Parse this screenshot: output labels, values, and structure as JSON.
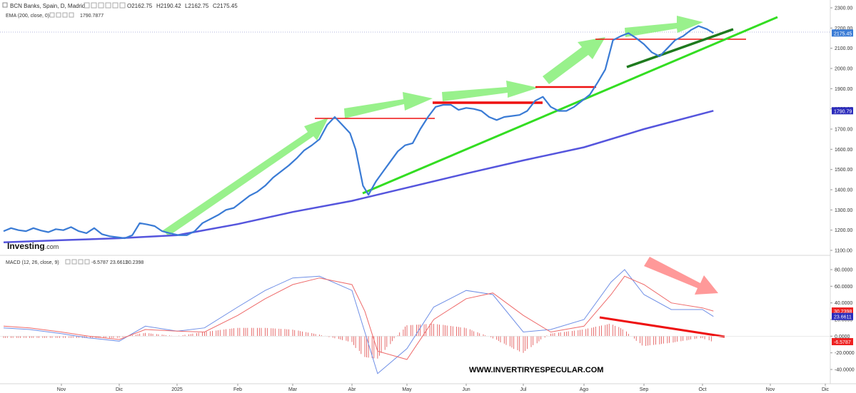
{
  "header": {
    "symbol": "BCN Banks, Spain, D, Madrid",
    "open": "O2162.75",
    "high": "H2190.42",
    "low": "L2162.75",
    "close": "C2175.45",
    "ema_label": "EMA (200, close, 0)",
    "ema_value": "1790.7877",
    "macd_label": "MACD (12, 26, close, 9)",
    "macd_hist": "-6.5787",
    "macd_line": "23.6611",
    "macd_signal": "30.2398"
  },
  "logo": {
    "brand": "Investing",
    "suffix": ".com"
  },
  "watermark": "WWW.INVERTIRYESPECULAR.COM",
  "colors": {
    "price": "#3a7bd5",
    "ema": "#5555dd",
    "macd": "#6f8fe6",
    "signal": "#ee6a6a",
    "hist": "#e04b4b",
    "trend_light": "#33dd22",
    "trend_dark": "#1e7a1e",
    "level": "#ee1111",
    "arrow_green": "#7fee6f",
    "arrow_red": "#ff8080"
  },
  "chart_data": [
    {
      "type": "line",
      "title": "",
      "xlabel": "",
      "ylabel": "",
      "x_ticks": [
        "Nov",
        "Dic",
        "2025",
        "Feb",
        "Mar",
        "Abr",
        "May",
        "Jun",
        "Jul",
        "Ago",
        "Sep",
        "Oct",
        "Nov",
        "Dic"
      ],
      "y_ticks": [
        "2300.00",
        "2200.00",
        "2100.00",
        "2000.00",
        "1900.00",
        "1800.00",
        "1700.00",
        "1600.00",
        "1500.00",
        "1400.00",
        "1300.00",
        "1200.00",
        "1100.00"
      ],
      "ylim": [
        1100,
        2300
      ],
      "price_label": "2175.45",
      "ema_label": "1790.79",
      "series": [
        {
          "name": "",
          "x": [
            "2024-10-01",
            "2024-10-05",
            "2024-10-09",
            "2024-10-13",
            "2024-10-17",
            "2024-10-21",
            "2024-10-25",
            "2024-10-29",
            "2024-11-02",
            "2024-11-06",
            "2024-11-10",
            "2024-11-14",
            "2024-11-18",
            "2024-11-22",
            "2024-11-26",
            "2024-11-30",
            "2024-12-04",
            "2024-12-08",
            "2024-12-12",
            "2024-12-16",
            "2024-12-20",
            "2024-12-24",
            "2024-12-28",
            "2025-01-02",
            "2025-01-06",
            "2025-01-10",
            "2025-01-14",
            "2025-01-18",
            "2025-01-22",
            "2025-01-26",
            "2025-01-30",
            "2025-02-03",
            "2025-02-07",
            "2025-02-11",
            "2025-02-15",
            "2025-02-19",
            "2025-02-23",
            "2025-02-27",
            "2025-03-03",
            "2025-03-07",
            "2025-03-11",
            "2025-03-15",
            "2025-03-19",
            "2025-03-23",
            "2025-03-27",
            "2025-03-31",
            "2025-04-03",
            "2025-04-07",
            "2025-04-10",
            "2025-04-14",
            "2025-04-18",
            "2025-04-22",
            "2025-04-26",
            "2025-04-30",
            "2025-05-04",
            "2025-05-08",
            "2025-05-12",
            "2025-05-16",
            "2025-05-20",
            "2025-05-24",
            "2025-05-28",
            "2025-06-01",
            "2025-06-05",
            "2025-06-09",
            "2025-06-13",
            "2025-06-17",
            "2025-06-21",
            "2025-06-25",
            "2025-06-29",
            "2025-07-03",
            "2025-07-07",
            "2025-07-11",
            "2025-07-15",
            "2025-07-19",
            "2025-07-23",
            "2025-07-27",
            "2025-07-31",
            "2025-08-04",
            "2025-08-08",
            "2025-08-12",
            "2025-08-16",
            "2025-08-20",
            "2025-08-24",
            "2025-08-28",
            "2025-09-01",
            "2025-09-05",
            "2025-09-09",
            "2025-09-13",
            "2025-09-17",
            "2025-09-21",
            "2025-09-25",
            "2025-09-29",
            "2025-10-03",
            "2025-10-06"
          ],
          "values": [
            1195,
            1210,
            1200,
            1195,
            1210,
            1198,
            1190,
            1205,
            1200,
            1215,
            1195,
            1185,
            1210,
            1180,
            1170,
            1165,
            1160,
            1175,
            1235,
            1228,
            1220,
            1195,
            1185,
            1175,
            1175,
            1195,
            1235,
            1255,
            1275,
            1300,
            1310,
            1340,
            1370,
            1390,
            1420,
            1460,
            1490,
            1520,
            1555,
            1595,
            1620,
            1650,
            1720,
            1760,
            1720,
            1680,
            1600,
            1420,
            1375,
            1440,
            1490,
            1540,
            1590,
            1620,
            1630,
            1700,
            1760,
            1810,
            1820,
            1820,
            1795,
            1805,
            1800,
            1790,
            1760,
            1745,
            1760,
            1765,
            1770,
            1790,
            1840,
            1860,
            1810,
            1790,
            1790,
            1810,
            1840,
            1870,
            1930,
            1995,
            2140,
            2160,
            2175,
            2150,
            2120,
            2080,
            2060,
            2100,
            2140,
            2160,
            2190,
            2210,
            2195,
            2175.45
          ]
        },
        {
          "name": "",
          "x": [
            "2024-10-01",
            "2024-11-01",
            "2024-12-01",
            "2025-01-01",
            "2025-02-01",
            "2025-03-01",
            "2025-04-01",
            "2025-05-01",
            "2025-06-01",
            "2025-07-01",
            "2025-08-01",
            "2025-09-01",
            "2025-10-06"
          ],
          "values": [
            1140,
            1150,
            1160,
            1175,
            1230,
            1290,
            1345,
            1410,
            1480,
            1545,
            1610,
            1700,
            1790.79
          ]
        }
      ]
    },
    {
      "type": "line",
      "title": "",
      "xlabel": "",
      "ylabel": "",
      "y_ticks": [
        "80.0000",
        "60.0000",
        "40.0000",
        "20.0000",
        "0.0000",
        "-20.0000",
        "-40.0000"
      ],
      "ylim": [
        -50,
        95
      ],
      "labels": [
        "30.2398",
        "23.6611",
        "-6.5787"
      ],
      "x": [
        "2024-10-01",
        "2024-10-15",
        "2024-11-01",
        "2024-11-15",
        "2024-12-01",
        "2024-12-15",
        "2025-01-01",
        "2025-01-15",
        "2025-02-01",
        "2025-02-15",
        "2025-03-01",
        "2025-03-15",
        "2025-04-01",
        "2025-04-08",
        "2025-04-15",
        "2025-05-01",
        "2025-05-15",
        "2025-06-01",
        "2025-06-15",
        "2025-07-01",
        "2025-07-15",
        "2025-08-01",
        "2025-08-15",
        "2025-08-22",
        "2025-09-01",
        "2025-09-15",
        "2025-10-01",
        "2025-10-06"
      ],
      "series": [
        {
          "name": "",
          "values": [
            10,
            8,
            3,
            -2,
            -6,
            12,
            6,
            10,
            35,
            55,
            70,
            72,
            55,
            5,
            -45,
            -15,
            35,
            55,
            50,
            5,
            8,
            20,
            65,
            80,
            50,
            32,
            32,
            23.6611
          ]
        },
        {
          "name": "",
          "values": [
            12,
            10,
            5,
            0,
            -4,
            8,
            6,
            5,
            25,
            45,
            62,
            70,
            62,
            30,
            -18,
            -28,
            20,
            45,
            52,
            25,
            5,
            12,
            50,
            72,
            62,
            40,
            34,
            30.2398
          ]
        },
        {
          "name": "",
          "values": [
            -2,
            -2,
            -2,
            -2,
            -2,
            4,
            0,
            5,
            10,
            10,
            8,
            2,
            -7,
            -25,
            -27,
            13,
            15,
            10,
            -2,
            -20,
            3,
            8,
            15,
            8,
            -12,
            -8,
            -2,
            -6.5787
          ]
        }
      ]
    }
  ]
}
